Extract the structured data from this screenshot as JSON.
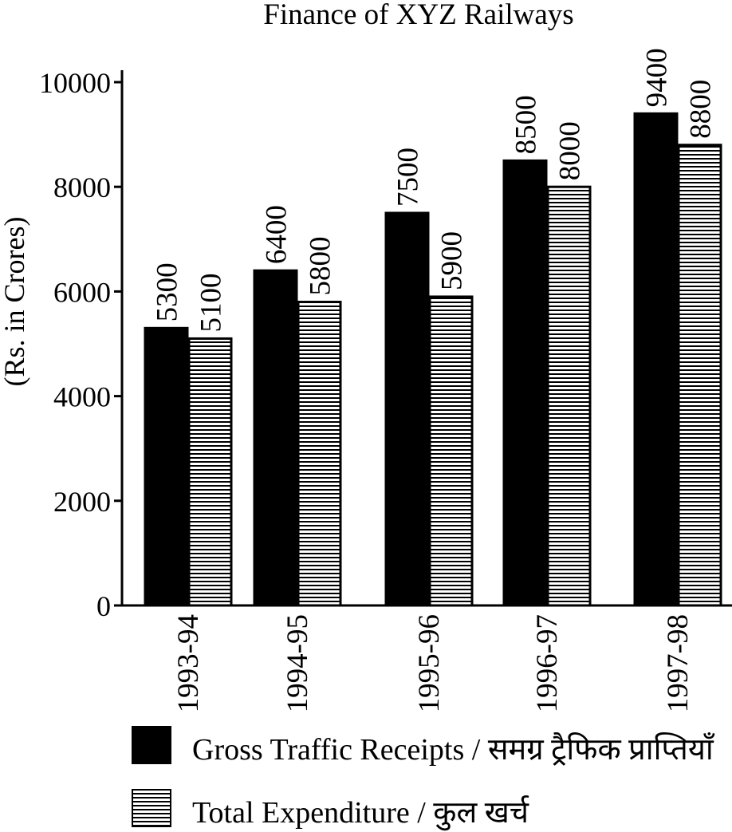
{
  "chart_data": {
    "type": "bar",
    "title": "Finance of XYZ Railways",
    "ylabel": "(Rs. in Crores)",
    "xlabel": "",
    "categories": [
      "1993-94",
      "1994-95",
      "1995-96",
      "1996-97",
      "1997-98"
    ],
    "series": [
      {
        "name": "Gross Traffic Receipts / समग्र ट्रैफिक प्राप्तियाँ",
        "values": [
          5300,
          6400,
          7500,
          8500,
          9400
        ],
        "labels": [
          "5300",
          "6400",
          "7500",
          "8500",
          "9400"
        ],
        "fill": "solid"
      },
      {
        "name": "Total Expenditure / कुल खर्च",
        "values": [
          5100,
          5800,
          5900,
          8000,
          8800
        ],
        "labels": [
          "5100",
          "5800",
          "5900",
          "8000",
          "8800"
        ],
        "fill": "horizontal-hatch"
      }
    ],
    "ylim": [
      0,
      10000
    ],
    "yticks": [
      0,
      2000,
      4000,
      6000,
      8000,
      10000
    ],
    "ytick_labels": [
      "0",
      "2000",
      "4000",
      "6000",
      "8000",
      "10000"
    ],
    "grid": false,
    "legend_position": "bottom",
    "colors": {
      "bar": "#000000",
      "hatch": "#000000",
      "background": "#ffffff"
    }
  }
}
